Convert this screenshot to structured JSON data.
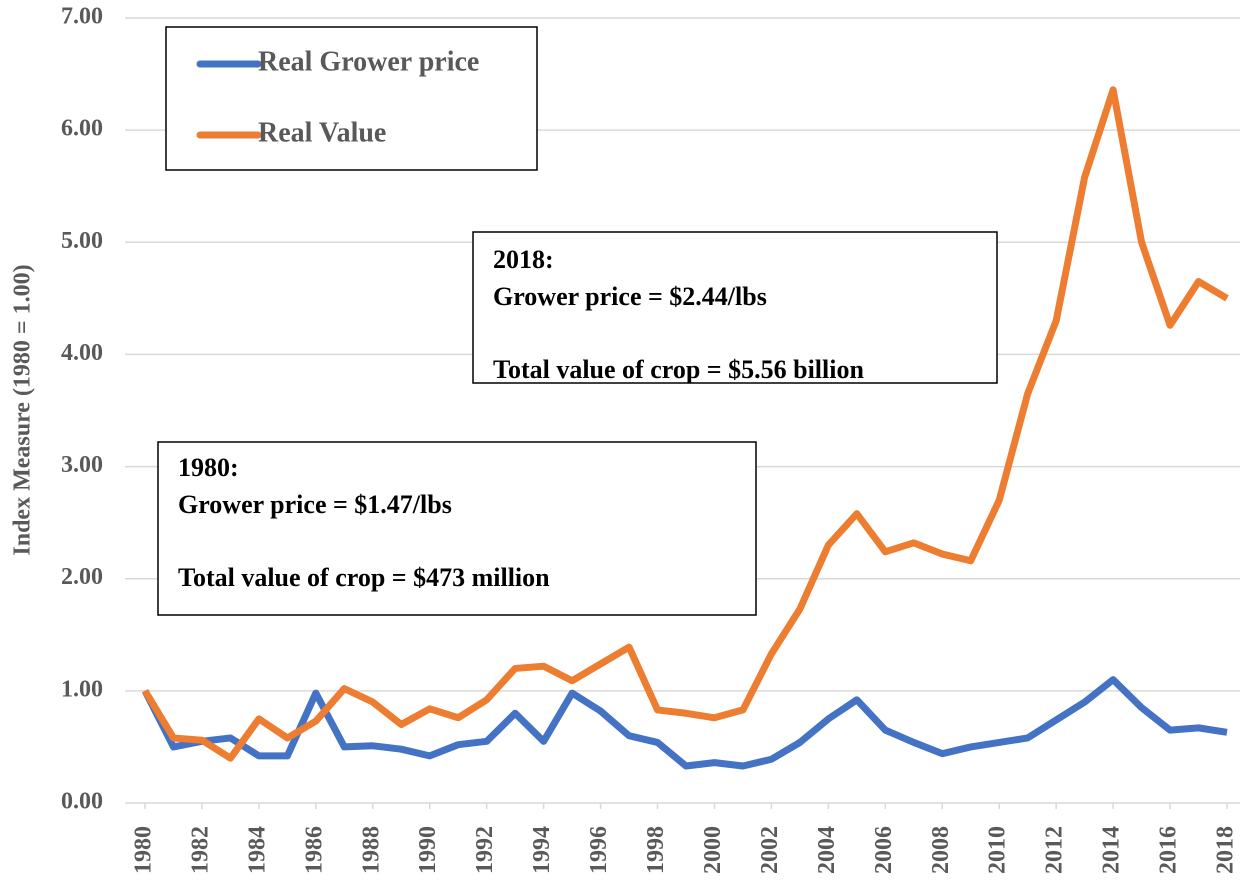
{
  "chart_data": {
    "type": "line",
    "y_label": "Index Measure (1980 = 1.00)",
    "x": [
      1980,
      1981,
      1982,
      1983,
      1984,
      1985,
      1986,
      1987,
      1988,
      1989,
      1990,
      1991,
      1992,
      1993,
      1994,
      1995,
      1996,
      1997,
      1998,
      1999,
      2000,
      2001,
      2002,
      2003,
      2004,
      2005,
      2006,
      2007,
      2008,
      2009,
      2010,
      2011,
      2012,
      2013,
      2014,
      2015,
      2016,
      2017,
      2018
    ],
    "xlim": [
      1980,
      2018
    ],
    "xticks": [
      1980,
      1982,
      1984,
      1986,
      1988,
      1990,
      1992,
      1994,
      1996,
      1998,
      2000,
      2002,
      2004,
      2006,
      2008,
      2010,
      2012,
      2014,
      2016,
      2018
    ],
    "ylim": [
      0,
      7
    ],
    "yticks": [
      {
        "value": 0,
        "label": "0.00"
      },
      {
        "value": 1,
        "label": "1.00"
      },
      {
        "value": 2,
        "label": "2.00"
      },
      {
        "value": 3,
        "label": "3.00"
      },
      {
        "value": 4,
        "label": "4.00"
      },
      {
        "value": 5,
        "label": "5.00"
      },
      {
        "value": 6,
        "label": "6.00"
      },
      {
        "value": 7,
        "label": "7.00"
      }
    ],
    "grid": true,
    "legend": "top-left",
    "series": [
      {
        "name": "Real Grower price",
        "color": "#4472c4",
        "values": [
          1.0,
          0.5,
          0.55,
          0.58,
          0.42,
          0.42,
          0.98,
          0.5,
          0.51,
          0.48,
          0.42,
          0.52,
          0.55,
          0.8,
          0.55,
          0.98,
          0.82,
          0.6,
          0.54,
          0.33,
          0.36,
          0.33,
          0.39,
          0.54,
          0.75,
          0.92,
          0.65,
          0.54,
          0.44,
          0.5,
          0.54,
          0.58,
          0.74,
          0.9,
          1.1,
          0.85,
          0.65,
          0.67,
          0.63
        ]
      },
      {
        "name": "Real Value",
        "color": "#ed7d31",
        "values": [
          1.0,
          0.58,
          0.56,
          0.4,
          0.75,
          0.58,
          0.73,
          1.02,
          0.9,
          0.7,
          0.84,
          0.76,
          0.92,
          1.2,
          1.22,
          1.09,
          1.24,
          1.39,
          0.83,
          0.8,
          0.76,
          0.83,
          1.33,
          1.73,
          2.3,
          2.58,
          2.24,
          2.32,
          2.22,
          2.16,
          2.7,
          3.65,
          4.3,
          5.58,
          6.36,
          5.0,
          4.26,
          4.65,
          4.5
        ]
      }
    ],
    "annotations": [
      {
        "lines": [
          "2018:",
          "Grower price = $2.44/lbs",
          "Total value of crop = $5.56 billion"
        ]
      },
      {
        "lines": [
          "1980:",
          "Grower price = $1.47/lbs",
          "Total value of crop = $473 million"
        ]
      }
    ]
  }
}
